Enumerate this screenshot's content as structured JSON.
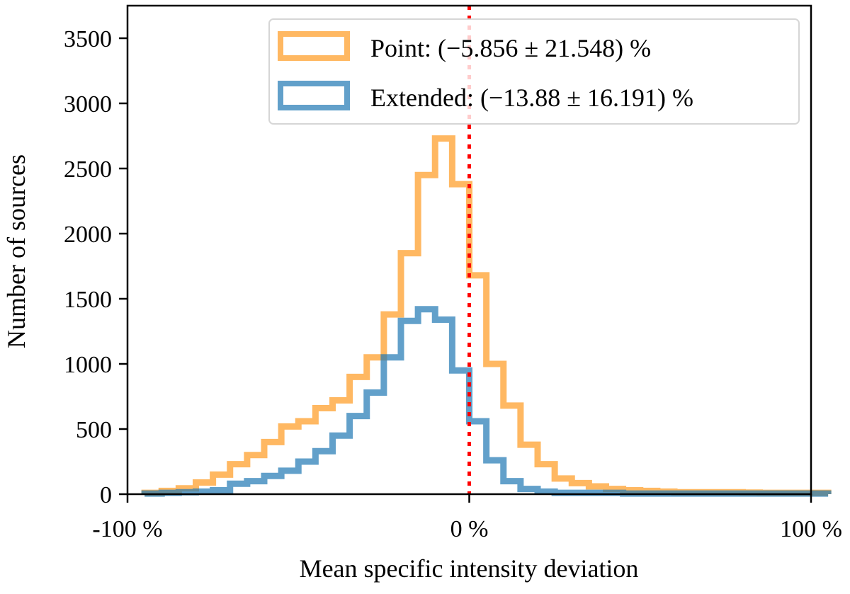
{
  "chart_data": {
    "type": "histogram",
    "xlabel": "Mean specific intensity deviation",
    "ylabel": "Number of sources",
    "xlim": [
      -100,
      100
    ],
    "ylim": [
      0,
      3750
    ],
    "x_ticks": [
      {
        "value": -100,
        "label": "-100 %"
      },
      {
        "value": 0,
        "label": "0 %"
      },
      {
        "value": 100,
        "label": "100 %"
      }
    ],
    "y_ticks": [
      {
        "value": 0,
        "label": "0"
      },
      {
        "value": 500,
        "label": "500"
      },
      {
        "value": 1000,
        "label": "1000"
      },
      {
        "value": 1500,
        "label": "1500"
      },
      {
        "value": 2000,
        "label": "2000"
      },
      {
        "value": 2500,
        "label": "2500"
      },
      {
        "value": 3000,
        "label": "3000"
      },
      {
        "value": 3500,
        "label": "3500"
      }
    ],
    "bin_start": -95,
    "bin_width": 5,
    "grid": false,
    "legend_position": "top-right",
    "reference_line": {
      "x": 0,
      "color": "#ff0000",
      "style": "dotted"
    },
    "series": [
      {
        "name": "Point: (−5.856 ± 21.548) %",
        "color": "#ff9a1f",
        "values": [
          10,
          25,
          45,
          90,
          150,
          230,
          300,
          400,
          520,
          560,
          660,
          720,
          900,
          1050,
          1380,
          1850,
          2450,
          2730,
          2380,
          1680,
          1000,
          680,
          380,
          230,
          120,
          85,
          60,
          40,
          30,
          25,
          20,
          15,
          15,
          15,
          15,
          12,
          10,
          10,
          10,
          10
        ]
      },
      {
        "name": "Extended: (−13.88 ± 16.191) %",
        "color": "#1f77b4",
        "values": [
          5,
          10,
          15,
          20,
          30,
          80,
          100,
          140,
          180,
          250,
          330,
          450,
          600,
          780,
          1050,
          1330,
          1420,
          1340,
          950,
          560,
          260,
          100,
          40,
          20,
          10,
          10,
          10,
          10,
          5,
          5,
          5,
          5,
          5,
          5,
          5,
          5,
          5,
          5,
          5,
          5
        ]
      }
    ]
  }
}
